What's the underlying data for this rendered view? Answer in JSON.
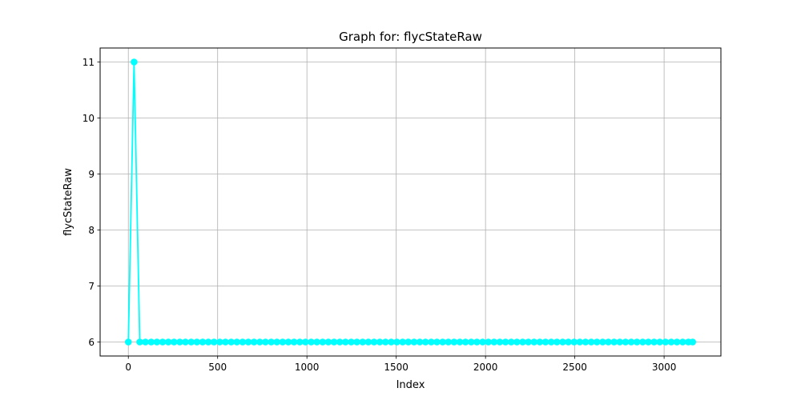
{
  "chart_data": {
    "type": "line",
    "title": "Graph for: flycStateRaw",
    "xlabel": "Index",
    "ylabel": "flycStateRaw",
    "xlim": [
      -158,
      3318
    ],
    "ylim": [
      5.75,
      11.25
    ],
    "xticks": [
      0,
      500,
      1000,
      1500,
      2000,
      2500,
      3000
    ],
    "yticks": [
      6,
      7,
      8,
      9,
      10,
      11
    ],
    "grid": true,
    "series": [
      {
        "color": "#00ffff",
        "marker": "circle",
        "x": [
          0,
          32,
          64,
          96,
          128,
          160,
          192,
          224,
          256,
          288,
          320,
          352,
          384,
          416,
          448,
          480,
          512,
          544,
          576,
          608,
          640,
          672,
          704,
          736,
          768,
          800,
          832,
          864,
          896,
          928,
          960,
          992,
          1024,
          1056,
          1088,
          1120,
          1152,
          1184,
          1216,
          1248,
          1280,
          1312,
          1344,
          1376,
          1408,
          1440,
          1472,
          1504,
          1536,
          1568,
          1600,
          1632,
          1664,
          1696,
          1728,
          1760,
          1792,
          1824,
          1856,
          1888,
          1920,
          1952,
          1984,
          2016,
          2048,
          2080,
          2112,
          2144,
          2176,
          2208,
          2240,
          2272,
          2304,
          2336,
          2368,
          2400,
          2432,
          2464,
          2496,
          2528,
          2560,
          2592,
          2624,
          2656,
          2688,
          2720,
          2752,
          2784,
          2816,
          2848,
          2880,
          2912,
          2944,
          2976,
          3008,
          3040,
          3072,
          3104,
          3136,
          3160
        ],
        "y": [
          6,
          11,
          6,
          6,
          6,
          6,
          6,
          6,
          6,
          6,
          6,
          6,
          6,
          6,
          6,
          6,
          6,
          6,
          6,
          6,
          6,
          6,
          6,
          6,
          6,
          6,
          6,
          6,
          6,
          6,
          6,
          6,
          6,
          6,
          6,
          6,
          6,
          6,
          6,
          6,
          6,
          6,
          6,
          6,
          6,
          6,
          6,
          6,
          6,
          6,
          6,
          6,
          6,
          6,
          6,
          6,
          6,
          6,
          6,
          6,
          6,
          6,
          6,
          6,
          6,
          6,
          6,
          6,
          6,
          6,
          6,
          6,
          6,
          6,
          6,
          6,
          6,
          6,
          6,
          6,
          6,
          6,
          6,
          6,
          6,
          6,
          6,
          6,
          6,
          6,
          6,
          6,
          6,
          6,
          6,
          6,
          6,
          6,
          6,
          6
        ]
      }
    ]
  }
}
